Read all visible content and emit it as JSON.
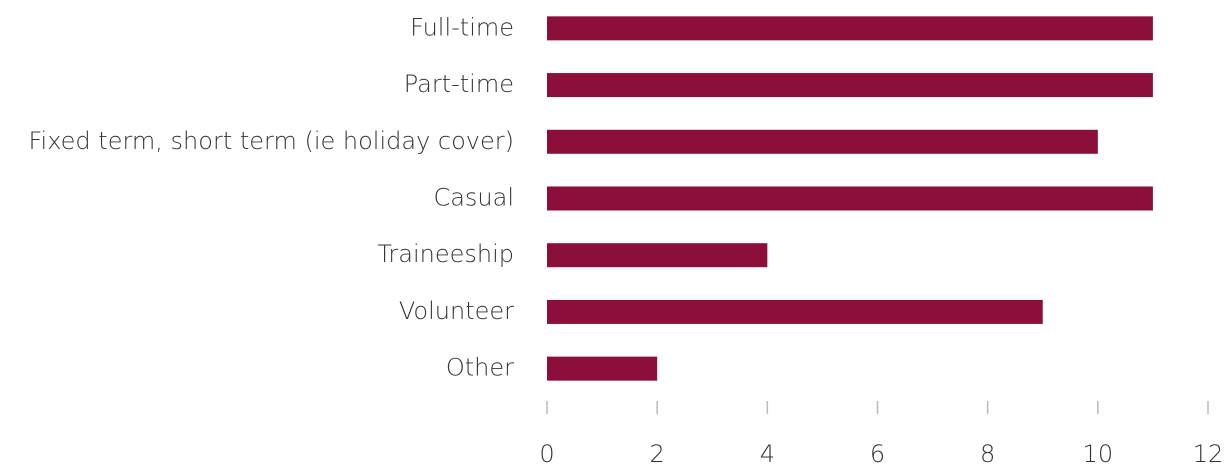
{
  "chart_data": {
    "type": "barh",
    "categories": [
      "Full-time",
      "Part-time",
      "Fixed term, short term (ie holiday cover)",
      "Casual",
      "Traineeship",
      "Volunteer",
      "Other"
    ],
    "values": [
      11,
      11,
      10,
      11,
      4,
      9,
      2
    ],
    "color": "#8b0f3a",
    "xlim": [
      0,
      12
    ],
    "xticks": [
      0,
      2,
      4,
      6,
      8,
      10,
      12
    ],
    "grid": false
  }
}
